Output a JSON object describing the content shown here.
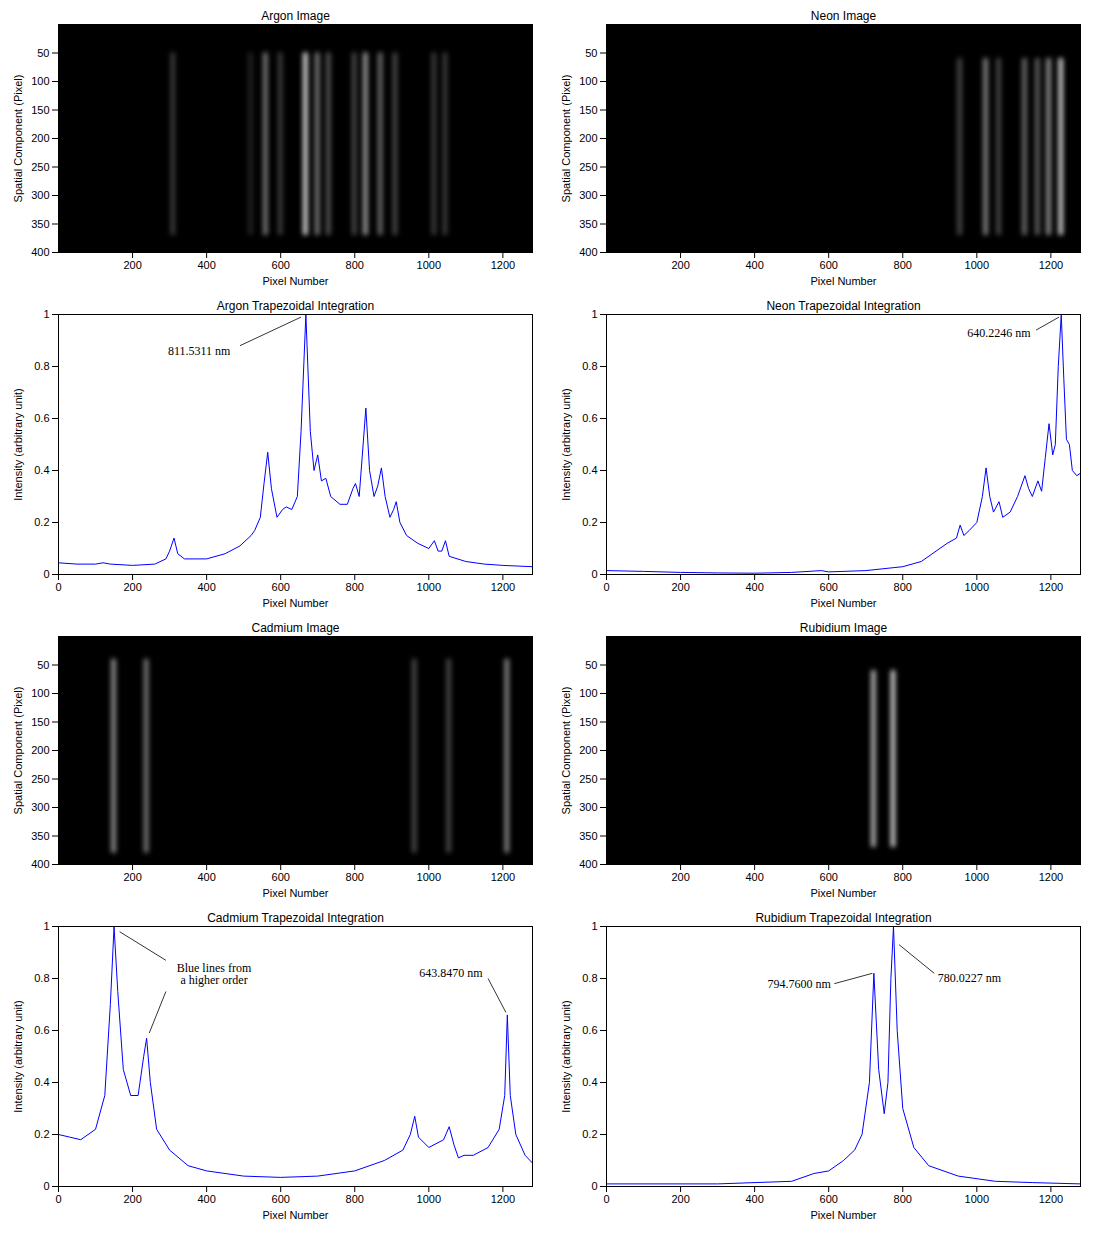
{
  "chart_data": [
    {
      "type": "image",
      "title": "Argon Image",
      "x_label": "Pixel Number",
      "y_label": "Spatial Component (Pixel)",
      "xlim": [
        0,
        1280
      ],
      "ylim": [
        0,
        400
      ],
      "xticks": [
        200,
        400,
        600,
        800,
        1000,
        1200
      ],
      "yticks": [
        50,
        100,
        150,
        200,
        250,
        300,
        350,
        400
      ],
      "band_extent": [
        50,
        370
      ],
      "lines": [
        {
          "x": 310,
          "brightness": 0.25
        },
        {
          "x": 520,
          "brightness": 0.15
        },
        {
          "x": 560,
          "brightness": 0.5
        },
        {
          "x": 600,
          "brightness": 0.25
        },
        {
          "x": 668,
          "brightness": 0.9
        },
        {
          "x": 700,
          "brightness": 0.5
        },
        {
          "x": 730,
          "brightness": 0.35
        },
        {
          "x": 800,
          "brightness": 0.3
        },
        {
          "x": 830,
          "brightness": 0.65
        },
        {
          "x": 870,
          "brightness": 0.45
        },
        {
          "x": 910,
          "brightness": 0.3
        },
        {
          "x": 1015,
          "brightness": 0.25
        },
        {
          "x": 1045,
          "brightness": 0.25
        }
      ]
    },
    {
      "type": "image",
      "title": "Neon Image",
      "x_label": "Pixel Number",
      "y_label": "Spatial Component (Pixel)",
      "xlim": [
        0,
        1280
      ],
      "ylim": [
        0,
        400
      ],
      "xticks": [
        200,
        400,
        600,
        800,
        1000,
        1200
      ],
      "yticks": [
        50,
        100,
        150,
        200,
        250,
        300,
        350,
        400
      ],
      "band_extent": [
        60,
        370
      ],
      "lines": [
        {
          "x": 955,
          "brightness": 0.3
        },
        {
          "x": 1025,
          "brightness": 0.55
        },
        {
          "x": 1060,
          "brightness": 0.3
        },
        {
          "x": 1130,
          "brightness": 0.45
        },
        {
          "x": 1165,
          "brightness": 0.4
        },
        {
          "x": 1195,
          "brightness": 0.6
        },
        {
          "x": 1228,
          "brightness": 0.85
        }
      ]
    },
    {
      "type": "line",
      "title": "Argon Trapezoidal Integration",
      "x_label": "Pixel Number",
      "y_label": "Intensity (arbitrary unit)",
      "xlim": [
        0,
        1280
      ],
      "ylim": [
        0,
        1
      ],
      "xticks": [
        0,
        200,
        400,
        600,
        800,
        1000,
        1200
      ],
      "yticks": [
        0,
        0.2,
        0.4,
        0.6,
        0.8,
        1
      ],
      "grid": false,
      "color": "#0000ff",
      "x": [
        0,
        50,
        100,
        120,
        140,
        200,
        260,
        290,
        300,
        312,
        322,
        340,
        400,
        450,
        490,
        520,
        530,
        545,
        555,
        565,
        575,
        590,
        605,
        615,
        630,
        645,
        655,
        668,
        680,
        690,
        700,
        710,
        722,
        735,
        760,
        780,
        795,
        802,
        812,
        820,
        830,
        840,
        852,
        862,
        872,
        882,
        895,
        905,
        912,
        922,
        940,
        970,
        1000,
        1015,
        1025,
        1035,
        1045,
        1055,
        1100,
        1150,
        1200,
        1280
      ],
      "values": [
        0.045,
        0.04,
        0.04,
        0.045,
        0.04,
        0.035,
        0.04,
        0.06,
        0.09,
        0.14,
        0.08,
        0.06,
        0.06,
        0.08,
        0.11,
        0.15,
        0.17,
        0.22,
        0.35,
        0.47,
        0.33,
        0.22,
        0.25,
        0.26,
        0.25,
        0.3,
        0.55,
        1.0,
        0.55,
        0.4,
        0.46,
        0.36,
        0.37,
        0.3,
        0.27,
        0.27,
        0.33,
        0.35,
        0.3,
        0.45,
        0.64,
        0.4,
        0.3,
        0.34,
        0.41,
        0.3,
        0.22,
        0.25,
        0.28,
        0.2,
        0.15,
        0.12,
        0.1,
        0.13,
        0.09,
        0.09,
        0.13,
        0.07,
        0.05,
        0.04,
        0.035,
        0.03
      ],
      "annotations": [
        {
          "text": "811.5311 nm",
          "x": 380,
          "y": 0.86,
          "leaders": [
            {
              "from": [
                490,
                0.88
              ],
              "to": [
                655,
                0.99
              ]
            }
          ]
        }
      ]
    },
    {
      "type": "line",
      "title": "Neon Trapezoidal Integration",
      "x_label": "Pixel Number",
      "y_label": "Intensity (arbitrary unit)",
      "xlim": [
        0,
        1280
      ],
      "ylim": [
        0,
        1
      ],
      "xticks": [
        0,
        200,
        400,
        600,
        800,
        1000,
        1200
      ],
      "yticks": [
        0,
        0.2,
        0.4,
        0.6,
        0.8,
        1
      ],
      "grid": false,
      "color": "#0000ff",
      "x": [
        0,
        100,
        200,
        300,
        400,
        500,
        580,
        600,
        700,
        800,
        850,
        890,
        920,
        945,
        955,
        965,
        980,
        1000,
        1015,
        1025,
        1035,
        1045,
        1060,
        1070,
        1090,
        1110,
        1130,
        1140,
        1150,
        1165,
        1175,
        1185,
        1195,
        1205,
        1212,
        1220,
        1228,
        1235,
        1242,
        1250,
        1258,
        1270,
        1280
      ],
      "values": [
        0.015,
        0.012,
        0.008,
        0.006,
        0.005,
        0.008,
        0.015,
        0.01,
        0.015,
        0.03,
        0.05,
        0.09,
        0.12,
        0.14,
        0.19,
        0.15,
        0.17,
        0.2,
        0.3,
        0.41,
        0.3,
        0.24,
        0.28,
        0.22,
        0.24,
        0.3,
        0.38,
        0.33,
        0.3,
        0.36,
        0.32,
        0.45,
        0.58,
        0.46,
        0.5,
        0.8,
        1.0,
        0.75,
        0.52,
        0.5,
        0.4,
        0.38,
        0.39
      ],
      "annotations": [
        {
          "text": "640.2246 nm",
          "x": 1060,
          "y": 0.93,
          "leaders": [
            {
              "from": [
                1160,
                0.94
              ],
              "to": [
                1222,
                0.99
              ]
            }
          ]
        }
      ]
    },
    {
      "type": "image",
      "title": "Cadmium Image",
      "x_label": "Pixel Number",
      "y_label": "Spatial Component (Pixel)",
      "xlim": [
        0,
        1280
      ],
      "ylim": [
        0,
        400
      ],
      "xticks": [
        200,
        400,
        600,
        800,
        1000,
        1200
      ],
      "yticks": [
        50,
        100,
        150,
        200,
        250,
        300,
        350,
        400
      ],
      "band_extent": [
        40,
        380
      ],
      "lines": [
        {
          "x": 150,
          "brightness": 0.6
        },
        {
          "x": 238,
          "brightness": 0.5
        },
        {
          "x": 962,
          "brightness": 0.3
        },
        {
          "x": 1055,
          "brightness": 0.3
        },
        {
          "x": 1212,
          "brightness": 0.55
        }
      ]
    },
    {
      "type": "image",
      "title": "Rubidium Image",
      "x_label": "Pixel Number",
      "y_label": "Spatial Component (Pixel)",
      "xlim": [
        0,
        1280
      ],
      "ylim": [
        0,
        400
      ],
      "xticks": [
        200,
        400,
        600,
        800,
        1000,
        1200
      ],
      "yticks": [
        50,
        100,
        150,
        200,
        250,
        300,
        350,
        400
      ],
      "band_extent": [
        60,
        370
      ],
      "lines": [
        {
          "x": 722,
          "brightness": 0.75
        },
        {
          "x": 775,
          "brightness": 0.85
        }
      ]
    },
    {
      "type": "line",
      "title": "Cadmium Trapezoidal Integration",
      "x_label": "Pixel Number",
      "y_label": "Intensity (arbitrary unit)",
      "xlim": [
        0,
        1280
      ],
      "ylim": [
        0,
        1
      ],
      "xticks": [
        0,
        200,
        400,
        600,
        800,
        1000,
        1200
      ],
      "yticks": [
        0,
        0.2,
        0.4,
        0.6,
        0.8,
        1
      ],
      "grid": false,
      "color": "#0000ff",
      "x": [
        0,
        30,
        60,
        100,
        125,
        140,
        150,
        160,
        175,
        195,
        215,
        230,
        238,
        248,
        265,
        300,
        350,
        400,
        500,
        600,
        700,
        800,
        880,
        930,
        950,
        962,
        972,
        1000,
        1040,
        1055,
        1068,
        1080,
        1095,
        1120,
        1160,
        1190,
        1205,
        1212,
        1220,
        1235,
        1260,
        1280
      ],
      "values": [
        0.2,
        0.19,
        0.18,
        0.22,
        0.35,
        0.7,
        1.0,
        0.75,
        0.45,
        0.35,
        0.35,
        0.5,
        0.57,
        0.4,
        0.22,
        0.14,
        0.08,
        0.06,
        0.04,
        0.035,
        0.04,
        0.06,
        0.1,
        0.14,
        0.2,
        0.27,
        0.19,
        0.15,
        0.18,
        0.23,
        0.16,
        0.11,
        0.12,
        0.12,
        0.15,
        0.22,
        0.35,
        0.66,
        0.35,
        0.2,
        0.12,
        0.09
      ],
      "annotations": [
        {
          "text": "Blue lines from\na higher order",
          "x": 420,
          "y": 0.815,
          "leaders": [
            {
              "from": [
                290,
                0.87
              ],
              "to": [
                165,
                0.98
              ]
            },
            {
              "from": [
                290,
                0.75
              ],
              "to": [
                245,
                0.59
              ]
            }
          ]
        },
        {
          "text": "643.8470 nm",
          "x": 1060,
          "y": 0.82,
          "leaders": [
            {
              "from": [
                1160,
                0.8
              ],
              "to": [
                1208,
                0.67
              ]
            }
          ]
        }
      ]
    },
    {
      "type": "line",
      "title": "Rubidium Trapezoidal Integration",
      "x_label": "Pixel Number",
      "y_label": "Intensity (arbitrary unit)",
      "xlim": [
        0,
        1280
      ],
      "ylim": [
        0,
        1
      ],
      "xticks": [
        0,
        200,
        400,
        600,
        800,
        1000,
        1200
      ],
      "yticks": [
        0,
        0.2,
        0.4,
        0.6,
        0.8,
        1
      ],
      "grid": false,
      "color": "#0000ff",
      "x": [
        0,
        300,
        500,
        560,
        600,
        640,
        670,
        690,
        710,
        722,
        735,
        750,
        760,
        768,
        775,
        785,
        800,
        830,
        870,
        950,
        1050,
        1150,
        1280
      ],
      "values": [
        0.01,
        0.01,
        0.02,
        0.05,
        0.06,
        0.1,
        0.14,
        0.2,
        0.4,
        0.82,
        0.45,
        0.28,
        0.4,
        0.8,
        1.0,
        0.6,
        0.3,
        0.15,
        0.08,
        0.04,
        0.02,
        0.015,
        0.01
      ],
      "annotations": [
        {
          "text": "794.7600 nm",
          "x": 520,
          "y": 0.78,
          "leaders": [
            {
              "from": [
                615,
                0.78
              ],
              "to": [
                718,
                0.82
              ]
            }
          ]
        },
        {
          "text": "780.0227 nm",
          "x": 980,
          "y": 0.8,
          "leaders": [
            {
              "from": [
                885,
                0.82
              ],
              "to": [
                790,
                0.93
              ]
            }
          ]
        }
      ]
    }
  ]
}
